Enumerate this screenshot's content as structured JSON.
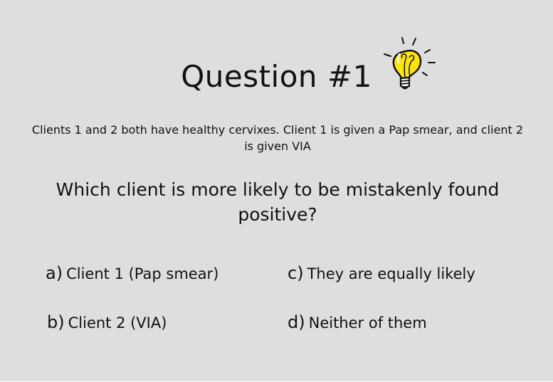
{
  "slide": {
    "title": "Question #1",
    "context": "Clients 1 and 2 both have healthy cervixes. Client 1 is given a Pap smear, and client 2 is given VIA",
    "question": "Which client is more likely to be mistakenly found positive?",
    "options": [
      {
        "letter": "a)",
        "text": "Client 1 (Pap smear)"
      },
      {
        "letter": "b)",
        "text": "Client 2 (VIA)"
      },
      {
        "letter": "c)",
        "text": "They are equally likely"
      },
      {
        "letter": "d)",
        "text": "Neither of them"
      }
    ],
    "icon": "lightbulb-icon",
    "colors": {
      "background": "#dedede",
      "bulb": "#ffe600",
      "text": "#111111"
    }
  }
}
